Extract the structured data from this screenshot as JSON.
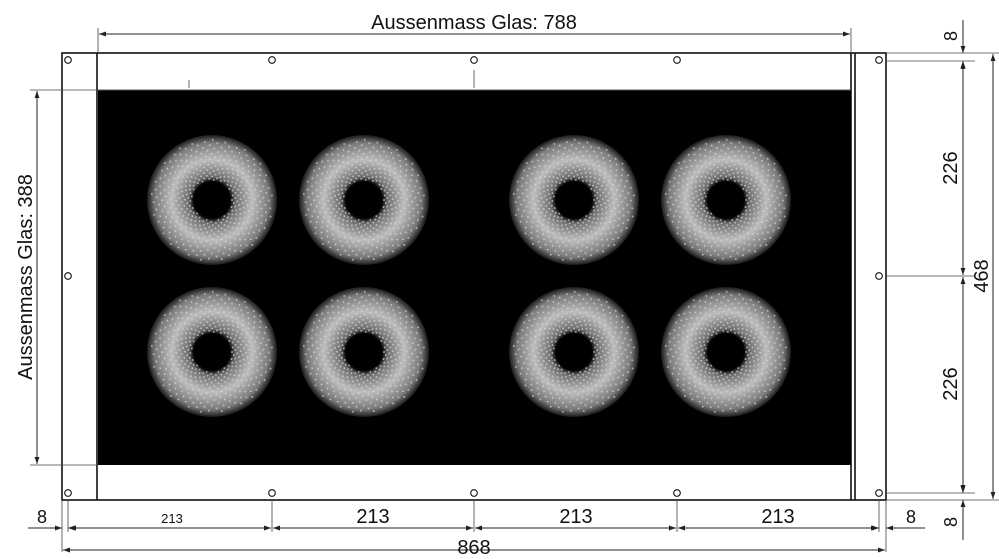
{
  "dimensions": {
    "top_label": "Aussenmass Glas: 788",
    "left_label": "Aussenmass Glas: 388",
    "right_top": "8",
    "right_upper": "226",
    "right_lower": "226",
    "right_total": "468",
    "right_bottom": "8",
    "bottom_left_margin": "8",
    "bottom_segments": [
      "213",
      "213",
      "213",
      "213"
    ],
    "bottom_right_margin": "8",
    "bottom_total": "868"
  },
  "colors": {
    "glass": "#000000",
    "burner_ring": "#d8d8d8",
    "line": "#111111"
  }
}
